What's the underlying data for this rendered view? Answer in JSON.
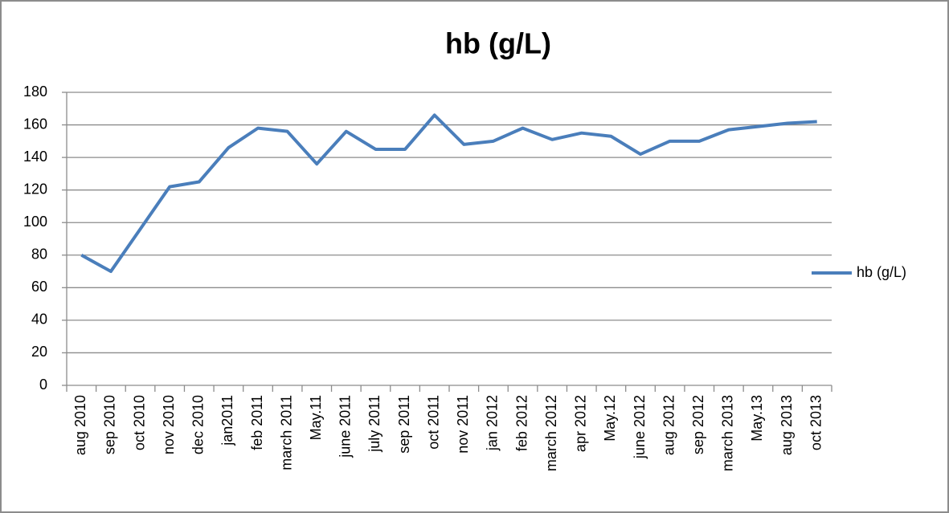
{
  "chart_data": {
    "type": "line",
    "title": "hb (g/L)",
    "categories": [
      "aug 2010",
      "sep 2010",
      "oct 2010",
      "nov 2010",
      "dec 2010",
      "jan2011",
      "feb 2011",
      "march 2011",
      "May.11",
      "june 2011",
      "july 2011",
      "sep 2011",
      "oct 2011",
      "nov 2011",
      "jan 2012",
      "feb 2012",
      "march 2012",
      "apr 2012",
      "May.12",
      "june 2012",
      "aug 2012",
      "sep 2012",
      "march 2013",
      "May.13",
      "aug 2013",
      "oct 2013"
    ],
    "series": [
      {
        "name": "hb (g/L)",
        "color": "#4a7ebb",
        "values": [
          80,
          70,
          96,
          122,
          125,
          146,
          158,
          156,
          136,
          156,
          145,
          145,
          166,
          148,
          150,
          158,
          151,
          155,
          153,
          142,
          150,
          150,
          157,
          159,
          161,
          162
        ]
      }
    ],
    "ylim": [
      0,
      180
    ],
    "yticks": [
      0,
      20,
      40,
      60,
      80,
      100,
      120,
      140,
      160,
      180
    ],
    "grid": true,
    "legend": "right"
  }
}
